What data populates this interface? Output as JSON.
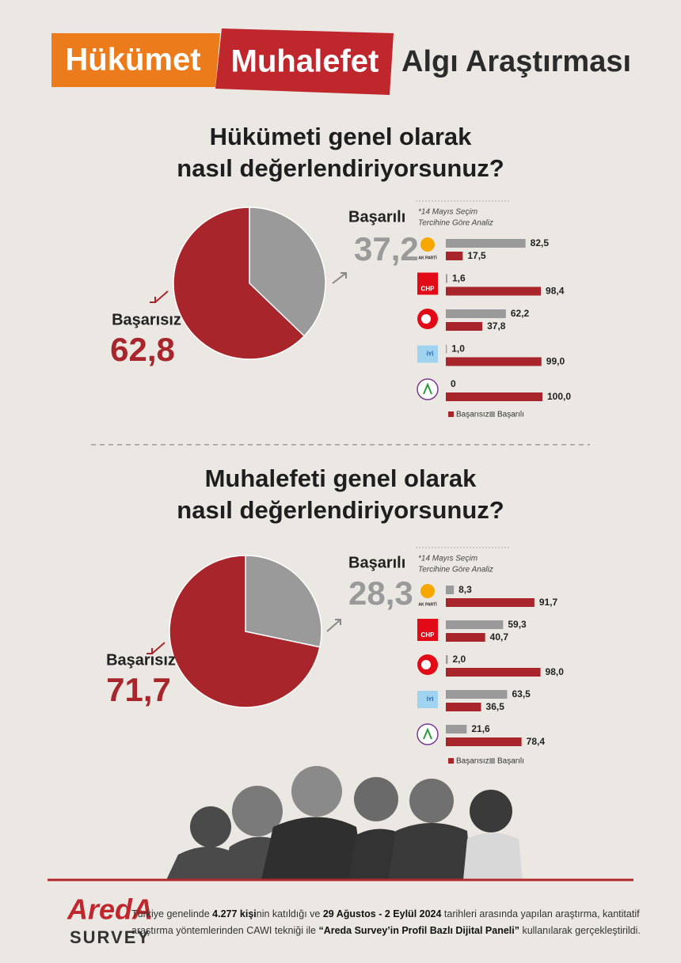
{
  "header": {
    "tags": [
      "Hükümet",
      "Muhalefet"
    ],
    "title": "Algı Araştırması"
  },
  "chart_data": [
    {
      "type": "pie",
      "title": [
        "Hükümeti genel olarak",
        "nasıl değerlendiriyorsunuz?"
      ],
      "categories": [
        "Başarısız",
        "Başarılı"
      ],
      "values": [
        62.8,
        37.2
      ],
      "value_labels": [
        "62,8",
        "37,2"
      ],
      "colors": [
        "#a8262b",
        "#9a9a9a"
      ]
    },
    {
      "type": "bar",
      "title": [
        "*14 Mayıs Seçim",
        "Tercihine Göre Analiz"
      ],
      "categories": [
        "AK PARTİ",
        "CHP",
        null,
        "İYİ",
        null
      ],
      "xlim": [
        0,
        100
      ],
      "series": [
        {
          "name": "Başarısız",
          "color": "#a8262b",
          "values": [
            17.5,
            98.4,
            37.8,
            99.0,
            100.0
          ],
          "value_labels": [
            "17,5",
            "98,4",
            "37,8",
            "99,0",
            "100,0"
          ]
        },
        {
          "name": "Başarılı",
          "color": "#9a9a9a",
          "values": [
            82.5,
            1.6,
            62.2,
            1.0,
            0
          ],
          "value_labels": [
            "82,5",
            "1,6",
            "62,2",
            "1,0",
            "0"
          ]
        }
      ]
    },
    {
      "type": "pie",
      "title": [
        "Muhalefeti genel olarak",
        "nasıl değerlendiriyorsunuz?"
      ],
      "categories": [
        "Başarısız",
        "Başarılı"
      ],
      "values": [
        71.7,
        28.3
      ],
      "value_labels": [
        "71,7",
        "28,3"
      ],
      "colors": [
        "#a8262b",
        "#9a9a9a"
      ]
    },
    {
      "type": "bar",
      "title": [
        "*14 Mayıs Seçim",
        "Tercihine Göre Analiz"
      ],
      "categories": [
        "AK PARTİ",
        "CHP",
        null,
        "İYİ",
        null
      ],
      "xlim": [
        0,
        100
      ],
      "series": [
        {
          "name": "Başarısız",
          "color": "#a8262b",
          "values": [
            91.7,
            40.7,
            98.0,
            36.5,
            78.4
          ],
          "value_labels": [
            "91,7",
            "40,7",
            "98,0",
            "36,5",
            "78,4"
          ]
        },
        {
          "name": "Başarılı",
          "color": "#9a9a9a",
          "values": [
            8.3,
            59.3,
            2.0,
            63.5,
            21.6
          ],
          "value_labels": [
            "8,3",
            "59,3",
            "2,0",
            "63,5",
            "21,6"
          ]
        }
      ]
    }
  ],
  "footer": {
    "logo": "AredA",
    "logo_sub": "SURVEY",
    "note": [
      {
        "text": "Türkiye genelinde ",
        "bold": false
      },
      {
        "text": "4.277 kişi",
        "bold": true
      },
      {
        "text": "nin katıldığı ve ",
        "bold": false
      },
      {
        "text": "29 Ağustos - 2 Eylül 2024",
        "bold": true
      },
      {
        "text": " tarihleri arasında yapılan araştırma, kantitatif araştırma yöntemlerinden CAWI tekniği ile ",
        "bold": false
      },
      {
        "text": "“Areda Survey’in Profil Bazlı Dijital Paneli”",
        "bold": true
      },
      {
        "text": " kullanılarak gerçekleştirildi.",
        "bold": false
      }
    ]
  }
}
